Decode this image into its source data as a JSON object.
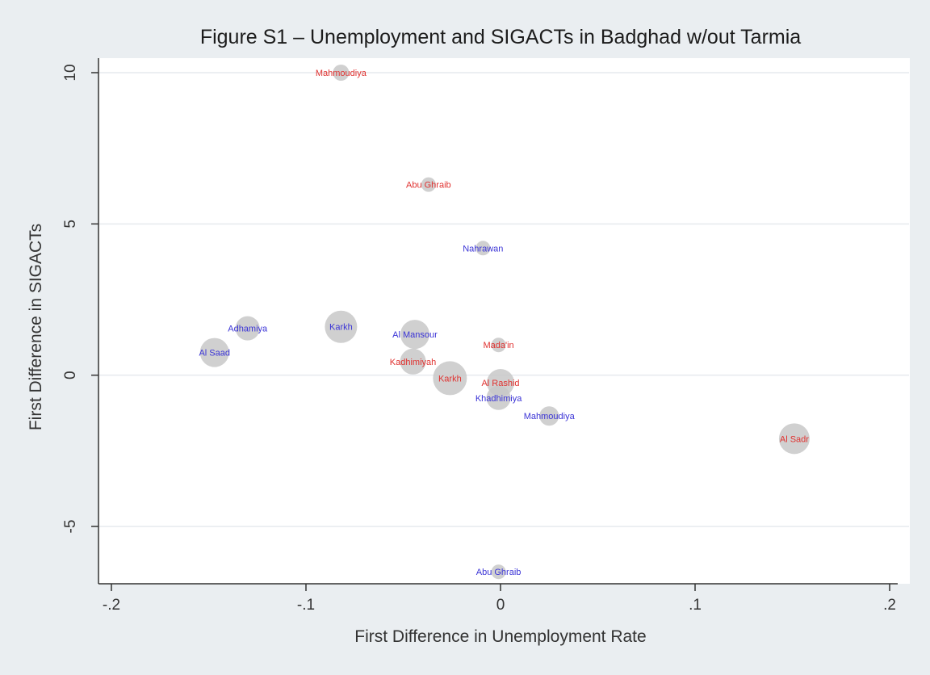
{
  "chart_data": {
    "type": "scatter",
    "title": "Figure S1 – Unemployment and SIGACTs in Badghad w/out Tarmia",
    "xlabel": "First Difference in Unemployment Rate",
    "ylabel": "First Difference in SIGACTs",
    "xlim": [
      -2.05,
      2.05
    ],
    "ylim": [
      -6.8,
      10.4
    ],
    "xticks": [
      -2,
      -1,
      0,
      1,
      2
    ],
    "xtick_labels": [
      "-.2",
      "-.1",
      "0",
      ".1",
      ".2"
    ],
    "yticks": [
      -5,
      0,
      5,
      10
    ],
    "ytick_labels": [
      "-5",
      "0",
      "5",
      "10"
    ],
    "grid": true,
    "legend": "none",
    "colors": {
      "red": "#e0312f",
      "blue": "#3a33d6",
      "marker": "#c8c8c8"
    },
    "points": [
      {
        "label": "Mahmoudiya",
        "x": -0.82,
        "y": 10.0,
        "size": 10,
        "color": "red"
      },
      {
        "label": "Abu Ghraib",
        "x": -0.37,
        "y": 6.3,
        "size": 9,
        "color": "red"
      },
      {
        "label": "Nahrawan",
        "x": -0.09,
        "y": 4.2,
        "size": 9,
        "color": "blue"
      },
      {
        "label": "Adhamiya",
        "x": -1.3,
        "y": 1.55,
        "size": 15,
        "color": "blue"
      },
      {
        "label": "Karkh",
        "x": -0.82,
        "y": 1.6,
        "size": 20,
        "color": "blue"
      },
      {
        "label": "Al Mansour",
        "x": -0.44,
        "y": 1.35,
        "size": 18,
        "color": "blue"
      },
      {
        "label": "Mada'in",
        "x": -0.01,
        "y": 1.0,
        "size": 9,
        "color": "red"
      },
      {
        "label": "Al Saad",
        "x": -1.47,
        "y": 0.75,
        "size": 18,
        "color": "blue"
      },
      {
        "label": "Kadhimiyah",
        "x": -0.45,
        "y": 0.45,
        "size": 16,
        "color": "red"
      },
      {
        "label": "Karkh",
        "x": -0.26,
        "y": -0.1,
        "size": 21,
        "color": "red"
      },
      {
        "label": "Al Rashid",
        "x": 0.0,
        "y": -0.25,
        "size": 17,
        "color": "red"
      },
      {
        "label": "Khadhimiya",
        "x": -0.01,
        "y": -0.75,
        "size": 15,
        "color": "blue"
      },
      {
        "label": "Mahmoudiya",
        "x": 0.25,
        "y": -1.35,
        "size": 12,
        "color": "blue"
      },
      {
        "label": "Al Sadr",
        "x": 1.51,
        "y": -2.1,
        "size": 19,
        "color": "red"
      },
      {
        "label": "Abu Ghraib",
        "x": -0.01,
        "y": -6.5,
        "size": 9,
        "color": "blue"
      }
    ]
  }
}
